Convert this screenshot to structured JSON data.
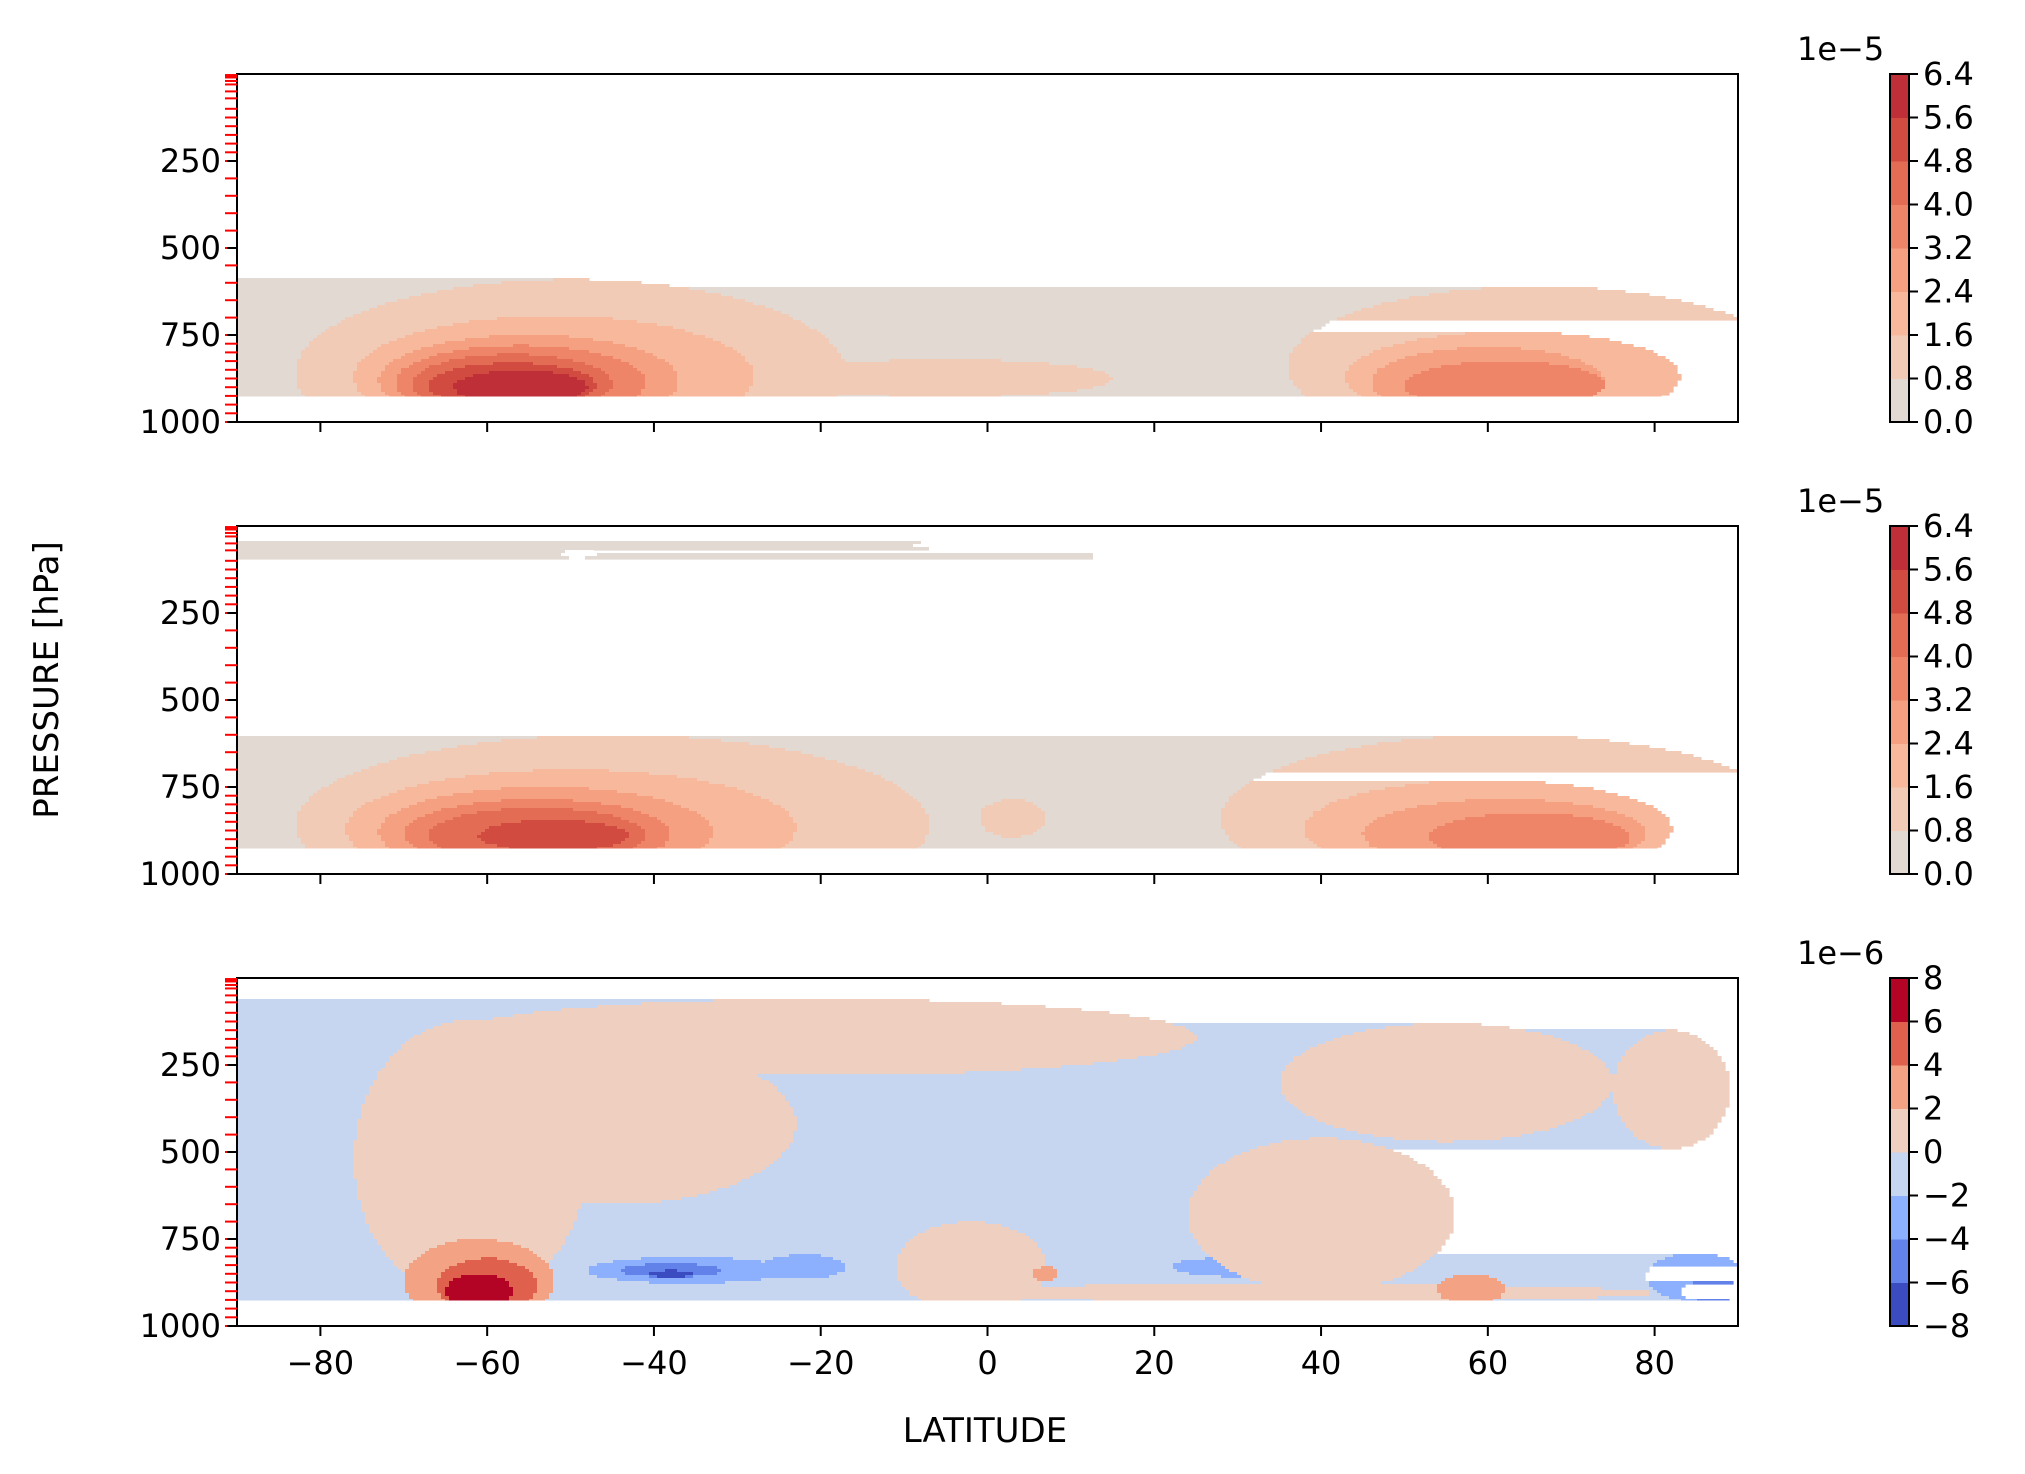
{
  "figure": {
    "xlabel": "LATITUDE",
    "ylabel": "PRESSURE [hPa]"
  },
  "chart_data": [
    {
      "type": "heatmap",
      "title": "",
      "xlim": [
        -90,
        90
      ],
      "ylim": [
        1000,
        0
      ],
      "xticks": [
        -80,
        -60,
        -40,
        -20,
        0,
        20,
        40,
        60,
        80
      ],
      "yticks": [
        250,
        500,
        750,
        1000
      ],
      "level_ticks": [
        3,
        7,
        10,
        20,
        30,
        50,
        70,
        100,
        125,
        150,
        175,
        200,
        225,
        250,
        300,
        350,
        400,
        450,
        500,
        550,
        600,
        650,
        700,
        750,
        775,
        800,
        825,
        850,
        875,
        900,
        925,
        950,
        975,
        1000
      ],
      "field_bottom_hPa": 925,
      "colorbar": {
        "offset": "1e−5",
        "levels": [
          0.0,
          0.8,
          1.6,
          2.4,
          3.2,
          4.0,
          4.8,
          5.6,
          6.4
        ],
        "tick_labels": [
          "0.0",
          "0.8",
          "1.6",
          "2.4",
          "3.2",
          "4.0",
          "4.8",
          "5.6",
          "6.4"
        ],
        "colors": [
          "#e3d9d3",
          "#f2cbb7",
          "#f7b89c",
          "#f5a081",
          "#ee8468",
          "#e36c55",
          "#d24b40",
          "#bf2f38"
        ]
      },
      "regions": [
        {
          "level": 1,
          "center": [
            -50,
            860
          ],
          "half_width": [
            33,
            270
          ]
        },
        {
          "level": 1,
          "center": [
            66,
            840
          ],
          "half_width": [
            30,
            230
          ]
        },
        {
          "level": 1,
          "center": [
            -5,
            875
          ],
          "half_width": [
            20,
            55
          ]
        },
        {
          "level": 2,
          "center": [
            -52,
            870
          ],
          "half_width": [
            24,
            175
          ]
        },
        {
          "level": 2,
          "center": [
            63,
            870
          ],
          "half_width": [
            20,
            130
          ]
        },
        {
          "level": 3,
          "center": [
            -55,
            880
          ],
          "half_width": [
            18,
            130
          ]
        },
        {
          "level": 3,
          "center": [
            60,
            885
          ],
          "half_width": [
            14,
            100
          ]
        },
        {
          "level": 4,
          "center": [
            -56,
            885
          ],
          "half_width": [
            15,
            105
          ]
        },
        {
          "level": 4,
          "center": [
            62,
            895
          ],
          "half_width": [
            12,
            70
          ]
        },
        {
          "level": 5,
          "center": [
            -57,
            890
          ],
          "half_width": [
            12,
            85
          ]
        },
        {
          "level": 6,
          "center": [
            -57,
            895
          ],
          "half_width": [
            10,
            65
          ]
        },
        {
          "level": 7,
          "center": [
            -56,
            900
          ],
          "half_width": [
            8,
            48
          ]
        }
      ]
    },
    {
      "type": "heatmap",
      "title": "",
      "xlim": [
        -90,
        90
      ],
      "ylim": [
        1000,
        0
      ],
      "xticks": [
        -80,
        -60,
        -40,
        -20,
        0,
        20,
        40,
        60,
        80
      ],
      "yticks": [
        250,
        500,
        750,
        1000
      ],
      "level_ticks": [
        3,
        7,
        10,
        20,
        30,
        50,
        70,
        100,
        125,
        150,
        175,
        200,
        225,
        250,
        300,
        350,
        400,
        450,
        500,
        550,
        600,
        650,
        700,
        750,
        775,
        800,
        825,
        850,
        875,
        900,
        925,
        950,
        975,
        1000
      ],
      "field_bottom_hPa": 925,
      "colorbar": {
        "offset": "1e−5",
        "levels": [
          0.0,
          0.8,
          1.6,
          2.4,
          3.2,
          4.0,
          4.8,
          5.6,
          6.4
        ],
        "tick_labels": [
          "0.0",
          "0.8",
          "1.6",
          "2.4",
          "3.2",
          "4.0",
          "4.8",
          "5.6",
          "6.4"
        ],
        "colors": [
          "#e3d9d3",
          "#f2cbb7",
          "#f7b89c",
          "#f5a081",
          "#ee8468",
          "#e36c55",
          "#d24b40",
          "#bf2f38"
        ]
      },
      "regions": [
        {
          "level": 1,
          "center": [
            -45,
            860
          ],
          "half_width": [
            38,
            260
          ]
        },
        {
          "level": 1,
          "center": [
            62,
            840
          ],
          "half_width": [
            34,
            240
          ]
        },
        {
          "level": 1,
          "center": [
            3,
            840
          ],
          "half_width": [
            4,
            55
          ]
        },
        {
          "level": 2,
          "center": [
            -50,
            870
          ],
          "half_width": [
            27,
            170
          ]
        },
        {
          "level": 2,
          "center": [
            60,
            870
          ],
          "half_width": [
            22,
            140
          ]
        },
        {
          "level": 3,
          "center": [
            -53,
            880
          ],
          "half_width": [
            20,
            130
          ]
        },
        {
          "level": 3,
          "center": [
            62,
            885
          ],
          "half_width": [
            17,
            100
          ]
        },
        {
          "level": 4,
          "center": [
            -54,
            885
          ],
          "half_width": [
            16,
            100
          ]
        },
        {
          "level": 4,
          "center": [
            65,
            895
          ],
          "half_width": [
            12,
            70
          ]
        },
        {
          "level": 5,
          "center": [
            -54,
            890
          ],
          "half_width": [
            13,
            80
          ]
        },
        {
          "level": 6,
          "center": [
            -52,
            890
          ],
          "half_width": [
            9,
            45
          ]
        }
      ],
      "voids": [
        {
          "center": [
            -49,
            80
          ],
          "half_width": [
            2,
            12
          ]
        },
        {
          "center": [
            -2,
            55
          ],
          "half_width": [
            7,
            14
          ]
        },
        {
          "center": [
            13,
            85
          ],
          "half_width": [
            0.5,
            10
          ]
        }
      ]
    },
    {
      "type": "heatmap",
      "title": "",
      "xlim": [
        -90,
        90
      ],
      "ylim": [
        1000,
        0
      ],
      "xticks": [
        -80,
        -60,
        -40,
        -20,
        0,
        20,
        40,
        60,
        80
      ],
      "yticks": [
        250,
        500,
        750,
        1000
      ],
      "level_ticks": [
        3,
        7,
        10,
        20,
        30,
        50,
        70,
        100,
        125,
        150,
        175,
        200,
        225,
        250,
        300,
        350,
        400,
        450,
        500,
        550,
        600,
        650,
        700,
        750,
        775,
        800,
        825,
        850,
        875,
        900,
        925,
        950,
        975,
        1000
      ],
      "field_bottom_hPa": 925,
      "colorbar": {
        "offset": "1e−6",
        "levels": [
          -8,
          -6,
          -4,
          -2,
          0,
          2,
          4,
          6,
          8
        ],
        "tick_labels": [
          "−8",
          "−6",
          "−4",
          "−2",
          "0",
          "2",
          "4",
          "6",
          "8"
        ],
        "colors": [
          "#3b4cc0",
          "#6282ea",
          "#8db0fe",
          "#c6d6f0",
          "#efcfbf",
          "#f4a284",
          "#de604d",
          "#b40426"
        ]
      },
      "base_level": 3,
      "regions": [
        {
          "level": 4,
          "center": [
            -62,
            520
          ],
          "half_width": [
            14,
            400
          ]
        },
        {
          "level": 4,
          "center": [
            -45,
            420
          ],
          "half_width": [
            22,
            230
          ]
        },
        {
          "level": 4,
          "center": [
            -20,
            170
          ],
          "half_width": [
            45,
            110
          ]
        },
        {
          "level": 4,
          "center": [
            -2,
            830
          ],
          "half_width": [
            9,
            130
          ]
        },
        {
          "level": 4,
          "center": [
            40,
            680
          ],
          "half_width": [
            16,
            220
          ]
        },
        {
          "level": 4,
          "center": [
            55,
            300
          ],
          "half_width": [
            20,
            170
          ]
        },
        {
          "level": 4,
          "center": [
            82,
            320
          ],
          "half_width": [
            7,
            170
          ]
        },
        {
          "level": 4,
          "center": [
            35,
            905
          ],
          "half_width": [
            45,
            25
          ]
        },
        {
          "level": 5,
          "center": [
            -61,
            870
          ],
          "half_width": [
            9,
            120
          ]
        },
        {
          "level": 5,
          "center": [
            7,
            850
          ],
          "half_width": [
            1.5,
            20
          ]
        },
        {
          "level": 5,
          "center": [
            58,
            895
          ],
          "half_width": [
            4,
            45
          ]
        },
        {
          "level": 6,
          "center": [
            -60,
            885
          ],
          "half_width": [
            6,
            80
          ]
        },
        {
          "level": 7,
          "center": [
            -61,
            900
          ],
          "half_width": [
            4,
            50
          ]
        },
        {
          "level": 2,
          "center": [
            -36,
            840
          ],
          "half_width": [
            12,
            38
          ]
        },
        {
          "level": 2,
          "center": [
            -22,
            830
          ],
          "half_width": [
            5,
            35
          ]
        },
        {
          "level": 2,
          "center": [
            32,
            830
          ],
          "half_width": [
            10,
            30
          ]
        },
        {
          "level": 2,
          "center": [
            85,
            860
          ],
          "half_width": [
            6,
            70
          ]
        },
        {
          "level": 1,
          "center": [
            -38,
            840
          ],
          "half_width": [
            6,
            20
          ]
        },
        {
          "level": 1,
          "center": [
            87,
            900
          ],
          "half_width": [
            4,
            30
          ]
        },
        {
          "level": 0,
          "center": [
            -38,
            850
          ],
          "half_width": [
            2.5,
            10
          ]
        }
      ]
    }
  ]
}
